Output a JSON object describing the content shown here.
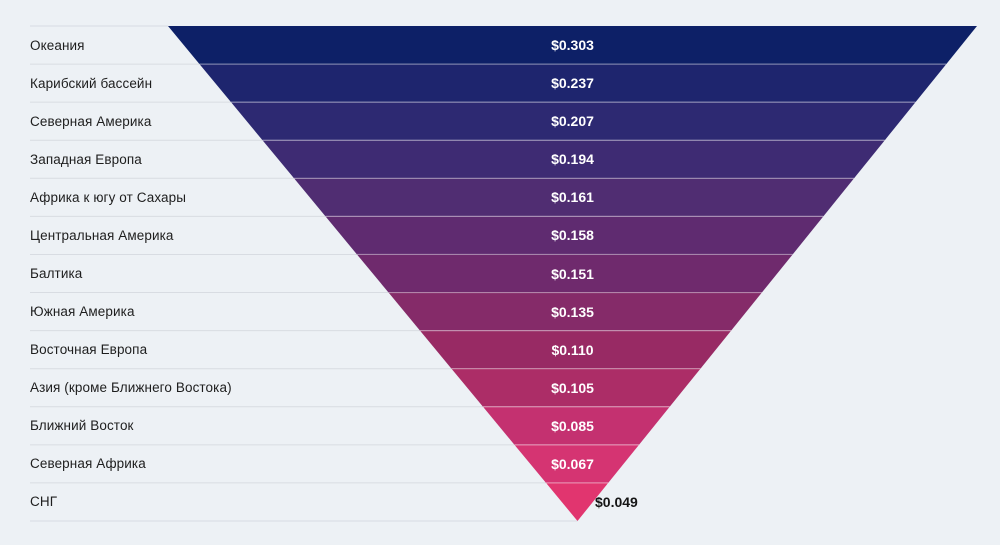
{
  "chart_data": {
    "type": "funnel",
    "orientation": "inverted-pyramid",
    "value_prefix": "$",
    "background_color": "#edf1f5",
    "row_separator_color": "#d8dce2",
    "band_divider_color": "rgba(255,255,255,0.42)",
    "label_text_color": "#1e1e1e",
    "value_text_color": "#ffffff",
    "outside_value_text_color": "#151515",
    "categories": [
      "Океания",
      "Карибский бассейн",
      "Северная Америка",
      "Западная Европа",
      "Африка к югу от Сахары",
      "Центральная Америка",
      "Балтика",
      "Южная Америка",
      "Восточная Европа",
      "Азия (кроме Ближнего Востока)",
      "Ближний Восток",
      "Северная Африка",
      "СНГ"
    ],
    "values": [
      0.303,
      0.237,
      0.207,
      0.194,
      0.161,
      0.158,
      0.151,
      0.135,
      0.11,
      0.105,
      0.085,
      0.067,
      0.049
    ],
    "items": [
      {
        "label": "Океания",
        "display_value": "$0.303",
        "color": "#0d2067"
      },
      {
        "label": "Карибский бассейн",
        "display_value": "$0.237",
        "color": "#1e256e"
      },
      {
        "label": "Северная Америка",
        "display_value": "$0.207",
        "color": "#2d2972"
      },
      {
        "label": "Западная Европа",
        "display_value": "$0.194",
        "color": "#3e2b73"
      },
      {
        "label": "Африка к югу от Сахары",
        "display_value": "$0.161",
        "color": "#502d72"
      },
      {
        "label": "Центральная Америка",
        "display_value": "$0.158",
        "color": "#5f2b70"
      },
      {
        "label": "Балтика",
        "display_value": "$0.151",
        "color": "#6f2a6d"
      },
      {
        "label": "Южная Америка",
        "display_value": "$0.135",
        "color": "#852b69"
      },
      {
        "label": "Восточная Европа",
        "display_value": "$0.110",
        "color": "#982a64"
      },
      {
        "label": "Азия (кроме Ближнего Востока)",
        "display_value": "$0.105",
        "color": "#ac2d67"
      },
      {
        "label": "Ближний Восток",
        "display_value": "$0.085",
        "color": "#c43170"
      },
      {
        "label": "Северная Африка",
        "display_value": "$0.067",
        "color": "#d53472"
      },
      {
        "label": "СНГ",
        "display_value": "$0.049",
        "color": "#e1356f"
      }
    ]
  }
}
